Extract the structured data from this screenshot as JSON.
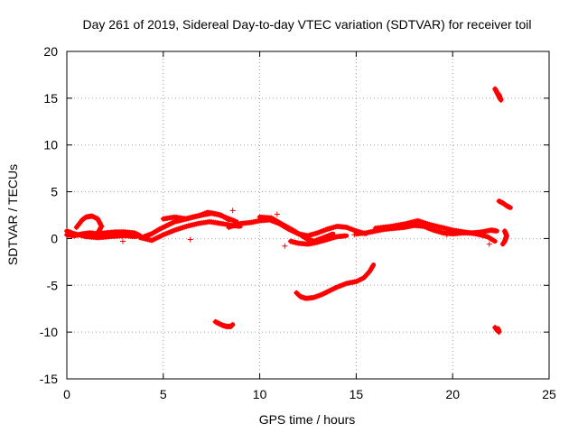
{
  "chart_data": {
    "type": "scatter",
    "title": "Day 261 of 2019, Sidereal Day-to-day VTEC variation (SDTVAR) for receiver toil",
    "xlabel": "GPS time / hours",
    "ylabel": "SDTVAR / TECUs",
    "xlim": [
      0,
      25
    ],
    "ylim": [
      -15,
      20
    ],
    "xticks": [
      0,
      5,
      10,
      15,
      20,
      25
    ],
    "yticks": [
      -15,
      -10,
      -5,
      0,
      5,
      10,
      15,
      20
    ],
    "grid": true,
    "marker": "+",
    "series": [
      {
        "name": "SDTVAR",
        "color": "#ff0000",
        "segments": [
          [
            [
              0.0,
              0.4
            ],
            [
              0.4,
              0.3
            ],
            [
              0.8,
              0.5
            ],
            [
              1.2,
              0.6
            ],
            [
              1.6,
              0.5
            ],
            [
              2.0,
              0.6
            ],
            [
              2.5,
              0.7
            ],
            [
              3.0,
              0.7
            ],
            [
              3.5,
              0.6
            ],
            [
              3.8,
              0.3
            ]
          ],
          [
            [
              0.5,
              1.2
            ],
            [
              0.8,
              2.0
            ],
            [
              1.0,
              2.3
            ],
            [
              1.3,
              2.4
            ],
            [
              1.6,
              2.1
            ],
            [
              1.8,
              1.3
            ],
            [
              1.6,
              0.6
            ]
          ],
          [
            [
              0.0,
              0.8
            ],
            [
              0.4,
              0.5
            ],
            [
              1.0,
              0.2
            ],
            [
              1.6,
              0.1
            ],
            [
              2.2,
              0.2
            ],
            [
              3.0,
              0.3
            ],
            [
              3.6,
              0.2
            ]
          ],
          [
            [
              4.0,
              0.2
            ],
            [
              4.4,
              0.5
            ],
            [
              4.8,
              1.0
            ],
            [
              5.2,
              1.4
            ],
            [
              5.6,
              1.8
            ],
            [
              6.0,
              2.0
            ],
            [
              6.5,
              2.3
            ],
            [
              7.0,
              2.5
            ],
            [
              7.5,
              2.7
            ],
            [
              8.0,
              2.5
            ],
            [
              8.4,
              2.0
            ]
          ],
          [
            [
              3.8,
              0.1
            ],
            [
              4.4,
              -0.2
            ],
            [
              5.0,
              0.4
            ],
            [
              5.6,
              0.9
            ],
            [
              6.2,
              1.3
            ],
            [
              6.8,
              1.6
            ],
            [
              7.4,
              1.8
            ],
            [
              8.0,
              1.6
            ],
            [
              8.6,
              1.4
            ],
            [
              9.0,
              1.3
            ]
          ],
          [
            [
              5.0,
              2.1
            ],
            [
              5.6,
              2.3
            ],
            [
              6.2,
              2.1
            ],
            [
              6.8,
              2.4
            ],
            [
              7.3,
              2.8
            ],
            [
              7.8,
              2.6
            ],
            [
              8.3,
              2.2
            ],
            [
              8.8,
              1.8
            ]
          ],
          [
            [
              8.4,
              1.2
            ],
            [
              9.0,
              1.6
            ],
            [
              9.5,
              1.7
            ],
            [
              10.0,
              1.9
            ],
            [
              10.5,
              2.0
            ],
            [
              11.0,
              1.6
            ],
            [
              11.5,
              1.0
            ],
            [
              12.0,
              0.5
            ],
            [
              12.5,
              0.3
            ],
            [
              13.0,
              0.6
            ],
            [
              13.5,
              1.0
            ],
            [
              14.0,
              1.3
            ],
            [
              14.5,
              1.2
            ],
            [
              15.0,
              0.8
            ],
            [
              15.5,
              0.5
            ]
          ],
          [
            [
              10.0,
              2.3
            ],
            [
              10.6,
              2.2
            ],
            [
              11.2,
              1.5
            ],
            [
              11.8,
              0.8
            ],
            [
              12.4,
              0.0
            ],
            [
              12.8,
              -0.3
            ],
            [
              13.3,
              0.1
            ],
            [
              13.8,
              0.5
            ]
          ],
          [
            [
              11.6,
              -0.3
            ],
            [
              12.0,
              -0.5
            ],
            [
              12.5,
              -0.6
            ],
            [
              13.0,
              -0.4
            ],
            [
              13.5,
              -0.1
            ],
            [
              14.0,
              0.2
            ],
            [
              14.5,
              0.3
            ]
          ],
          [
            [
              15.0,
              0.5
            ],
            [
              15.5,
              0.6
            ],
            [
              16.0,
              0.8
            ],
            [
              16.5,
              1.0
            ],
            [
              17.0,
              1.1
            ],
            [
              17.5,
              1.2
            ],
            [
              18.0,
              1.4
            ],
            [
              18.5,
              1.3
            ],
            [
              19.0,
              0.9
            ],
            [
              19.5,
              0.6
            ],
            [
              20.0,
              0.5
            ],
            [
              20.5,
              0.6
            ],
            [
              21.0,
              0.6
            ],
            [
              21.5,
              0.7
            ],
            [
              22.0,
              0.9
            ],
            [
              22.3,
              0.8
            ]
          ],
          [
            [
              16.0,
              1.1
            ],
            [
              16.8,
              1.3
            ],
            [
              17.6,
              1.6
            ],
            [
              18.2,
              1.9
            ],
            [
              18.8,
              1.5
            ],
            [
              19.4,
              1.2
            ],
            [
              20.0,
              0.9
            ],
            [
              20.6,
              0.7
            ],
            [
              21.2,
              0.5
            ],
            [
              21.8,
              0.2
            ],
            [
              22.2,
              -0.3
            ]
          ],
          [
            [
              7.7,
              -8.9
            ],
            [
              7.9,
              -9.1
            ],
            [
              8.1,
              -9.3
            ],
            [
              8.3,
              -9.4
            ],
            [
              8.5,
              -9.4
            ],
            [
              8.6,
              -9.2
            ]
          ],
          [
            [
              11.9,
              -5.8
            ],
            [
              12.1,
              -6.2
            ],
            [
              12.4,
              -6.4
            ],
            [
              12.8,
              -6.3
            ],
            [
              13.2,
              -6.0
            ],
            [
              13.6,
              -5.6
            ],
            [
              14.0,
              -5.2
            ],
            [
              14.5,
              -4.8
            ],
            [
              15.0,
              -4.6
            ],
            [
              15.4,
              -4.2
            ],
            [
              15.7,
              -3.5
            ],
            [
              15.9,
              -2.8
            ]
          ],
          [
            [
              22.2,
              16.0
            ],
            [
              22.3,
              15.6
            ],
            [
              22.4,
              15.2
            ],
            [
              22.5,
              14.8
            ],
            [
              22.4,
              15.4
            ]
          ],
          [
            [
              22.4,
              4.0
            ],
            [
              22.6,
              3.8
            ],
            [
              22.8,
              3.5
            ],
            [
              23.0,
              3.3
            ]
          ],
          [
            [
              22.7,
              0.8
            ],
            [
              22.8,
              0.3
            ],
            [
              22.7,
              -0.3
            ],
            [
              22.6,
              -0.6
            ]
          ],
          [
            [
              22.2,
              -9.5
            ],
            [
              22.3,
              -9.8
            ],
            [
              22.4,
              -10.0
            ],
            [
              22.35,
              -9.6
            ]
          ]
        ],
        "points": [
          [
            8.6,
            3.0
          ],
          [
            2.9,
            -0.3
          ],
          [
            10.9,
            2.6
          ],
          [
            6.4,
            -0.1
          ],
          [
            19.7,
            0.4
          ],
          [
            21.9,
            -0.6
          ],
          [
            11.3,
            -0.8
          ],
          [
            14.9,
            0.4
          ]
        ]
      }
    ]
  }
}
